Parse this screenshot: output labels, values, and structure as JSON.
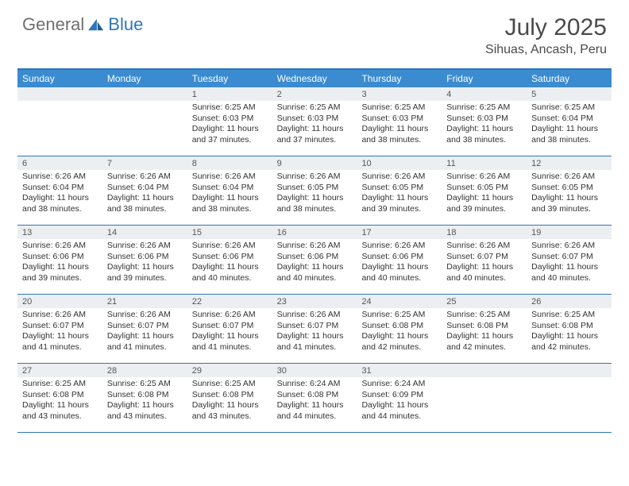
{
  "brand": {
    "word1": "General",
    "word2": "Blue"
  },
  "title": {
    "month": "July 2025",
    "location": "Sihuas, Ancash, Peru"
  },
  "colors": {
    "header_bg": "#3a8bd0",
    "border": "#2f76bb",
    "band": "#eceff1",
    "text": "#333333",
    "title_text": "#4a4a4a"
  },
  "dow": [
    "Sunday",
    "Monday",
    "Tuesday",
    "Wednesday",
    "Thursday",
    "Friday",
    "Saturday"
  ],
  "grid": {
    "first_weekday_index": 2,
    "days_in_month": 31
  },
  "days": {
    "1": {
      "sunrise": "6:25 AM",
      "sunset": "6:03 PM",
      "dl_h": 11,
      "dl_m": 37
    },
    "2": {
      "sunrise": "6:25 AM",
      "sunset": "6:03 PM",
      "dl_h": 11,
      "dl_m": 37
    },
    "3": {
      "sunrise": "6:25 AM",
      "sunset": "6:03 PM",
      "dl_h": 11,
      "dl_m": 38
    },
    "4": {
      "sunrise": "6:25 AM",
      "sunset": "6:03 PM",
      "dl_h": 11,
      "dl_m": 38
    },
    "5": {
      "sunrise": "6:25 AM",
      "sunset": "6:04 PM",
      "dl_h": 11,
      "dl_m": 38
    },
    "6": {
      "sunrise": "6:26 AM",
      "sunset": "6:04 PM",
      "dl_h": 11,
      "dl_m": 38
    },
    "7": {
      "sunrise": "6:26 AM",
      "sunset": "6:04 PM",
      "dl_h": 11,
      "dl_m": 38
    },
    "8": {
      "sunrise": "6:26 AM",
      "sunset": "6:04 PM",
      "dl_h": 11,
      "dl_m": 38
    },
    "9": {
      "sunrise": "6:26 AM",
      "sunset": "6:05 PM",
      "dl_h": 11,
      "dl_m": 38
    },
    "10": {
      "sunrise": "6:26 AM",
      "sunset": "6:05 PM",
      "dl_h": 11,
      "dl_m": 39
    },
    "11": {
      "sunrise": "6:26 AM",
      "sunset": "6:05 PM",
      "dl_h": 11,
      "dl_m": 39
    },
    "12": {
      "sunrise": "6:26 AM",
      "sunset": "6:05 PM",
      "dl_h": 11,
      "dl_m": 39
    },
    "13": {
      "sunrise": "6:26 AM",
      "sunset": "6:06 PM",
      "dl_h": 11,
      "dl_m": 39
    },
    "14": {
      "sunrise": "6:26 AM",
      "sunset": "6:06 PM",
      "dl_h": 11,
      "dl_m": 39
    },
    "15": {
      "sunrise": "6:26 AM",
      "sunset": "6:06 PM",
      "dl_h": 11,
      "dl_m": 40
    },
    "16": {
      "sunrise": "6:26 AM",
      "sunset": "6:06 PM",
      "dl_h": 11,
      "dl_m": 40
    },
    "17": {
      "sunrise": "6:26 AM",
      "sunset": "6:06 PM",
      "dl_h": 11,
      "dl_m": 40
    },
    "18": {
      "sunrise": "6:26 AM",
      "sunset": "6:07 PM",
      "dl_h": 11,
      "dl_m": 40
    },
    "19": {
      "sunrise": "6:26 AM",
      "sunset": "6:07 PM",
      "dl_h": 11,
      "dl_m": 40
    },
    "20": {
      "sunrise": "6:26 AM",
      "sunset": "6:07 PM",
      "dl_h": 11,
      "dl_m": 41
    },
    "21": {
      "sunrise": "6:26 AM",
      "sunset": "6:07 PM",
      "dl_h": 11,
      "dl_m": 41
    },
    "22": {
      "sunrise": "6:26 AM",
      "sunset": "6:07 PM",
      "dl_h": 11,
      "dl_m": 41
    },
    "23": {
      "sunrise": "6:26 AM",
      "sunset": "6:07 PM",
      "dl_h": 11,
      "dl_m": 41
    },
    "24": {
      "sunrise": "6:25 AM",
      "sunset": "6:08 PM",
      "dl_h": 11,
      "dl_m": 42
    },
    "25": {
      "sunrise": "6:25 AM",
      "sunset": "6:08 PM",
      "dl_h": 11,
      "dl_m": 42
    },
    "26": {
      "sunrise": "6:25 AM",
      "sunset": "6:08 PM",
      "dl_h": 11,
      "dl_m": 42
    },
    "27": {
      "sunrise": "6:25 AM",
      "sunset": "6:08 PM",
      "dl_h": 11,
      "dl_m": 43
    },
    "28": {
      "sunrise": "6:25 AM",
      "sunset": "6:08 PM",
      "dl_h": 11,
      "dl_m": 43
    },
    "29": {
      "sunrise": "6:25 AM",
      "sunset": "6:08 PM",
      "dl_h": 11,
      "dl_m": 43
    },
    "30": {
      "sunrise": "6:24 AM",
      "sunset": "6:08 PM",
      "dl_h": 11,
      "dl_m": 44
    },
    "31": {
      "sunrise": "6:24 AM",
      "sunset": "6:09 PM",
      "dl_h": 11,
      "dl_m": 44
    }
  },
  "labels": {
    "sunrise_prefix": "Sunrise: ",
    "sunset_prefix": "Sunset: ",
    "daylight_prefix": "Daylight: ",
    "hours_word": " hours",
    "and_word": "and ",
    "minutes_word": " minutes."
  }
}
